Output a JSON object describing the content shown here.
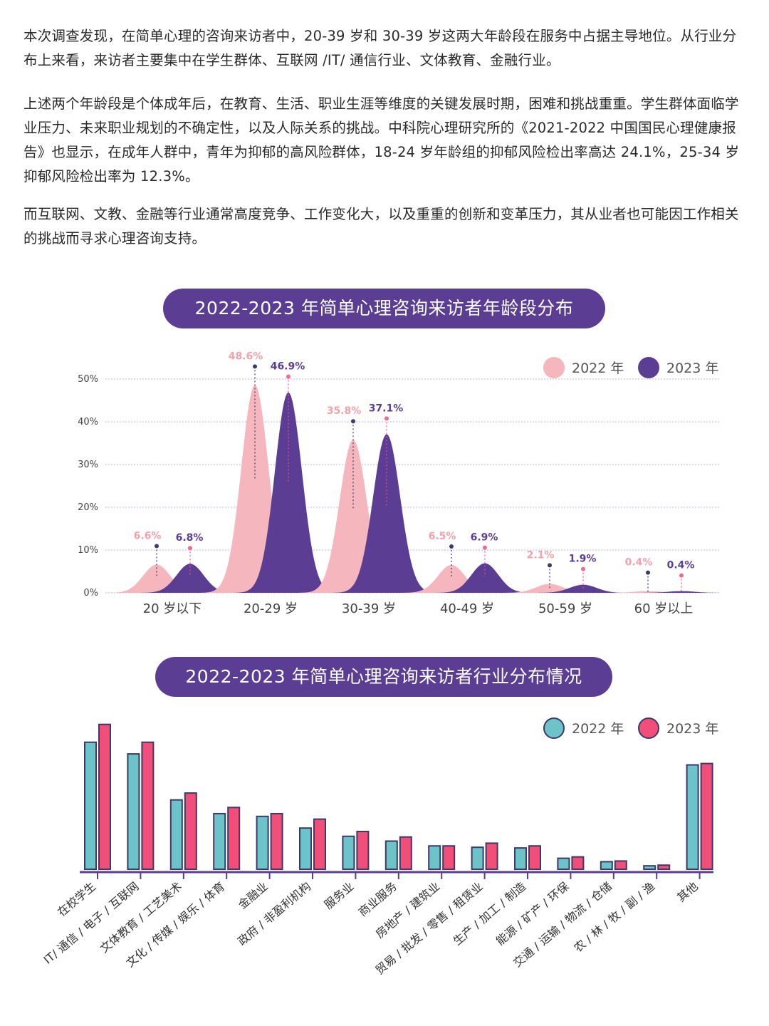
{
  "paragraphs": [
    "本次调查发现，在简单心理的咨询来访者中，20-39 岁和 30-39 岁这两大年龄段在服务中占据主导地位。从行业分布上来看，来访者主要集中在学生群体、互联网 /IT/ 通信行业、文体教育、金融行业。",
    "上述两个年龄段是个体成年后，在教育、生活、职业生涯等维度的关键发展时期，困难和挑战重重。学生群体面临学业压力、未来职业规划的不确定性，以及人际关系的挑战。中科院心理研究所的《2021-2022 中国国民心理健康报告》也显示，在成年人群中，青年为抑郁的高风险群体，18-24 岁年龄组的抑郁风险检出率高达 24.1%，25-34 岁抑郁风险检出率为 12.3%。",
    "而互联网、文教、金融等行业通常高度竞争、工作变化大，以及重重的创新和变革压力，其从业者也可能因工作相关的挑战而寻求心理咨询支持。"
  ],
  "chart_data": [
    {
      "type": "area",
      "title": "2022-2023 年简单心理咨询来访者年龄段分布",
      "categories": [
        "20 岁以下",
        "20-29 岁",
        "30-39 岁",
        "40-49 岁",
        "50-59 岁",
        "60 岁以上"
      ],
      "series": [
        {
          "name": "2022 年",
          "values": [
            6.6,
            48.6,
            35.8,
            6.5,
            2.1,
            0.4
          ],
          "color": "#f5b6bd"
        },
        {
          "name": "2023 年",
          "values": [
            6.8,
            46.9,
            37.1,
            6.9,
            1.9,
            0.4
          ],
          "color": "#5b3d94"
        }
      ],
      "data_labels": {
        "2022 年": [
          "6.6%",
          "48.6%",
          "35.8%",
          "6.5%",
          "2.1%",
          "0.4%"
        ],
        "2023 年": [
          "6.8%",
          "46.9%",
          "37.1%",
          "6.9%",
          "1.9%",
          "0.4%"
        ]
      },
      "yticks": [
        "0%",
        "10%",
        "20%",
        "30%",
        "40%",
        "50%"
      ],
      "ylim": [
        0,
        50
      ],
      "grid": true,
      "legend": "top-right"
    },
    {
      "type": "bar",
      "title": "2022-2023 年简单心理咨询来访者行业分布情况",
      "categories": [
        "在校学生",
        "IT/ 通信 / 电子 / 互联网",
        "文体教育 / 工艺美术",
        "文化 / 传媒 / 娱乐 / 体育",
        "金融业",
        "政府 / 非盈利机构",
        "服务业",
        "商业服务",
        "房地产 / 建筑业",
        "贸易 / 批发 / 零售 / 租赁业",
        "生产 / 加工 / 制造",
        "能源 / 矿产 / 环保",
        "交通 / 运输 / 物流 / 仓储",
        "农 / 林 / 牧 / 副 / 渔",
        "其他"
      ],
      "series": [
        {
          "name": "2022 年",
          "values": [
            18.5,
            16.8,
            10.1,
            8.1,
            7.7,
            6.0,
            4.8,
            4.1,
            3.4,
            3.2,
            3.1,
            1.6,
            1.1,
            0.5,
            15.2
          ],
          "color": "#6cc3c8"
        },
        {
          "name": "2023 年",
          "values": [
            21.1,
            18.5,
            11.1,
            9.0,
            8.1,
            7.3,
            5.5,
            4.7,
            3.4,
            3.8,
            3.4,
            1.8,
            1.2,
            0.6,
            15.4
          ],
          "color": "#f14f7a"
        }
      ],
      "ylim": [
        0,
        22
      ],
      "legend": "top-right"
    }
  ]
}
